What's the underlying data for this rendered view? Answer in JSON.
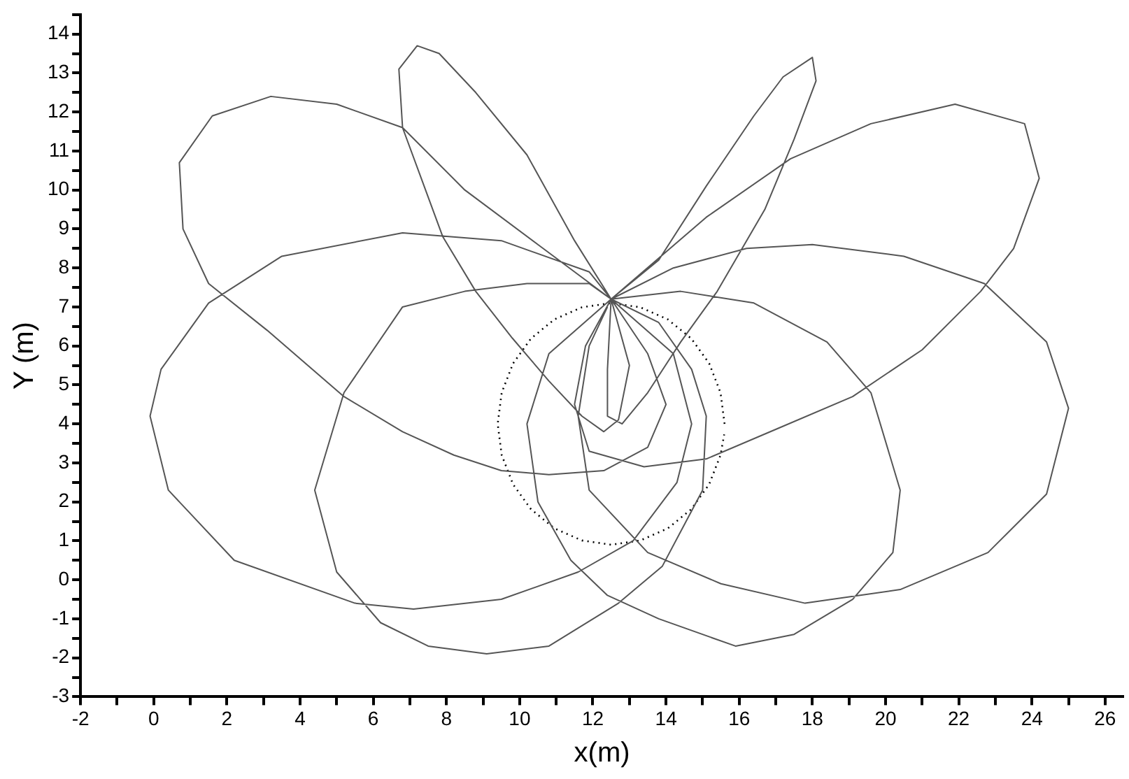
{
  "chart_data": {
    "type": "line",
    "xlabel": "x(m)",
    "ylabel": "Y (m)",
    "grid": false,
    "legend": false,
    "marker": "none",
    "xlim": [
      -2,
      26.5
    ],
    "ylim": [
      -3,
      14.5
    ],
    "xticks": [
      -2,
      {
        "value": -1,
        "label": null
      },
      0,
      {
        "value": 1,
        "label": null
      },
      2,
      {
        "value": 3,
        "label": null
      },
      4,
      {
        "value": 5,
        "label": null
      },
      6,
      {
        "value": 7,
        "label": null
      },
      8,
      {
        "value": 9,
        "label": null
      },
      10,
      {
        "value": 11,
        "label": null
      },
      12,
      {
        "value": 13,
        "label": null
      },
      14,
      {
        "value": 15,
        "label": null
      },
      16,
      {
        "value": 17,
        "label": null
      },
      18,
      {
        "value": 19,
        "label": null
      },
      20,
      {
        "value": 21,
        "label": null
      },
      22,
      {
        "value": 23,
        "label": null
      },
      24,
      {
        "value": 25,
        "label": null
      },
      26
    ],
    "yticks": [
      -3,
      {
        "value": -2.5,
        "label": null
      },
      -2,
      {
        "value": -1.5,
        "label": null
      },
      -1,
      {
        "value": -0.5,
        "label": null
      },
      0,
      {
        "value": 0.5,
        "label": null
      },
      1,
      {
        "value": 1.5,
        "label": null
      },
      2,
      {
        "value": 2.5,
        "label": null
      },
      3,
      {
        "value": 3.5,
        "label": null
      },
      4,
      {
        "value": 4.5,
        "label": null
      },
      5,
      {
        "value": 5.5,
        "label": null
      },
      6,
      {
        "value": 6.5,
        "label": null
      },
      7,
      {
        "value": 7.5,
        "label": null
      },
      8,
      {
        "value": 8.5,
        "label": null
      },
      9,
      {
        "value": 9.5,
        "label": null
      },
      10,
      {
        "value": 10.5,
        "label": null
      },
      11,
      {
        "value": 11.5,
        "label": null
      },
      12,
      {
        "value": 12.5,
        "label": null
      },
      13,
      {
        "value": 13.5,
        "label": null
      },
      14,
      {
        "value": 14.5,
        "label": null
      }
    ],
    "series": [
      {
        "color": "#555555",
        "x": [
          12.5,
          10.5,
          8.5,
          6.8,
          5,
          3.2,
          1.6,
          0.7,
          0.8,
          1.5,
          3.1,
          5.2,
          6.8,
          8.2,
          9.5,
          10.8,
          12.3,
          13.5,
          14,
          13.5,
          12.5,
          11.5,
          10.2,
          8.8,
          7.8,
          7.2,
          6.7,
          6.8,
          7.9,
          8.8,
          9.8,
          10.8,
          11.7,
          12.3,
          12.7,
          13,
          12.5,
          13.8,
          15.1,
          16.4,
          17.2,
          18,
          18.1,
          17.5,
          16.7,
          15.4,
          14.4,
          13.5,
          12.8,
          12.4,
          12.4,
          12.5,
          15.1,
          17.4,
          19.6,
          21.9,
          23.8,
          24.2,
          23.5,
          22.6,
          21,
          19.1,
          17.1,
          15.1,
          13.4,
          11.9,
          11.5,
          11.8,
          12.5,
          11.9,
          9.5,
          6.8,
          3.5,
          1.5,
          0.2,
          -0.1,
          0.4,
          2.2,
          5.5,
          7.1,
          9.5,
          11.6,
          13.1,
          14.3,
          14.7,
          14.2,
          12.5,
          11.9,
          10.2,
          8.5,
          6.8,
          5.2,
          4.4,
          5,
          6.2,
          7.5,
          9.1,
          10.8,
          12.7,
          13.9,
          15,
          15.1,
          14.7,
          13.8,
          12.5,
          14.4,
          16.4,
          18.4,
          19.6,
          20.4,
          20.2,
          19.1,
          17.5,
          15.9,
          13.8,
          12.4,
          11.4,
          10.5,
          10.2,
          10.8,
          12.5,
          14.2,
          16.2,
          18,
          20.5,
          22.7,
          24.4,
          25,
          24.4,
          22.8,
          20.4,
          17.8,
          15.5,
          13.5,
          11.9,
          11.6,
          11.9,
          12.4
        ],
        "values": [
          7.2,
          8.6,
          10,
          11.6,
          12.2,
          12.4,
          11.9,
          10.7,
          9,
          7.6,
          6.4,
          4.7,
          3.8,
          3.2,
          2.8,
          2.7,
          2.8,
          3.4,
          4.5,
          5.8,
          7.2,
          8.7,
          10.9,
          12.5,
          13.5,
          13.7,
          13.1,
          11.6,
          8.8,
          7.4,
          6.2,
          5.1,
          4.2,
          3.8,
          4.1,
          5.5,
          7.2,
          8.2,
          10.1,
          11.9,
          12.9,
          13.4,
          12.8,
          11.3,
          9.5,
          7.4,
          6.1,
          4.8,
          4.0,
          4.2,
          5.4,
          7.2,
          9.3,
          10.8,
          11.7,
          12.2,
          11.7,
          10.3,
          8.5,
          7.4,
          5.9,
          4.7,
          3.9,
          3.1,
          2.9,
          3.3,
          4.5,
          6,
          7.2,
          7.9,
          8.7,
          8.9,
          8.3,
          7.1,
          5.4,
          4.2,
          2.3,
          0.5,
          -0.6,
          -0.75,
          -0.5,
          0.2,
          1.0,
          2.5,
          4,
          5.8,
          7.2,
          7.6,
          7.6,
          7.4,
          7.0,
          4.8,
          2.3,
          0.2,
          -1.1,
          -1.7,
          -1.9,
          -1.7,
          -0.6,
          0.35,
          2.3,
          4.2,
          5.4,
          6.6,
          7.2,
          7.4,
          7.1,
          6.1,
          4.8,
          2.3,
          0.7,
          -0.5,
          -1.4,
          -1.7,
          -1.0,
          -0.4,
          0.5,
          2,
          4.0,
          5.8,
          7.2,
          8.0,
          8.5,
          8.6,
          8.3,
          7.6,
          6.1,
          4.4,
          2.2,
          0.7,
          -0.25,
          -0.6,
          -0.1,
          0.7,
          2.3,
          4.2,
          6,
          7.0
        ]
      },
      {
        "color": "#000000",
        "line_style": "dotted",
        "x": [
          15.6,
          15.49,
          15.18,
          14.69,
          14.05,
          13.3,
          12.5,
          11.7,
          10.95,
          10.31,
          9.82,
          9.51,
          9.4,
          9.51,
          9.82,
          10.31,
          10.95,
          11.7,
          12.5,
          13.3,
          14.05,
          14.69,
          15.18,
          15.49,
          15.59
        ],
        "values": [
          4.0,
          4.8,
          5.55,
          6.19,
          6.68,
          6.99,
          7.1,
          6.99,
          6.68,
          6.19,
          5.55,
          4.8,
          4.0,
          3.2,
          2.45,
          1.81,
          1.32,
          1.01,
          0.9,
          1.01,
          1.32,
          1.81,
          2.45,
          3.2,
          3.73
        ]
      }
    ]
  }
}
